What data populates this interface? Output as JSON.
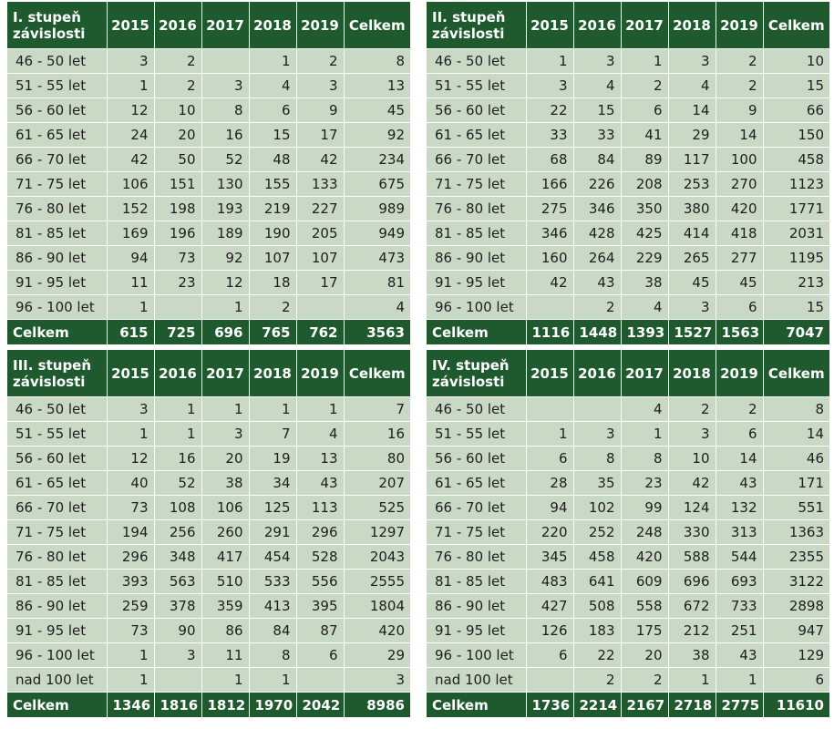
{
  "years": [
    "2015",
    "2016",
    "2017",
    "2018",
    "2019"
  ],
  "total_label": "Celkem",
  "tables": [
    {
      "heading": "I. stupeň závislosti",
      "rows": [
        {
          "age": "46 - 50 let",
          "values": [
            "3",
            "2",
            "",
            "1",
            "2"
          ],
          "total": "8"
        },
        {
          "age": "51 - 55 let",
          "values": [
            "1",
            "2",
            "3",
            "4",
            "3"
          ],
          "total": "13"
        },
        {
          "age": "56 - 60 let",
          "values": [
            "12",
            "10",
            "8",
            "6",
            "9"
          ],
          "total": "45"
        },
        {
          "age": "61 - 65 let",
          "values": [
            "24",
            "20",
            "16",
            "15",
            "17"
          ],
          "total": "92"
        },
        {
          "age": "66 - 70 let",
          "values": [
            "42",
            "50",
            "52",
            "48",
            "42"
          ],
          "total": "234"
        },
        {
          "age": "71 - 75 let",
          "values": [
            "106",
            "151",
            "130",
            "155",
            "133"
          ],
          "total": "675"
        },
        {
          "age": "76 - 80 let",
          "values": [
            "152",
            "198",
            "193",
            "219",
            "227"
          ],
          "total": "989"
        },
        {
          "age": "81 - 85 let",
          "values": [
            "169",
            "196",
            "189",
            "190",
            "205"
          ],
          "total": "949"
        },
        {
          "age": "86 - 90 let",
          "values": [
            "94",
            "73",
            "92",
            "107",
            "107"
          ],
          "total": "473"
        },
        {
          "age": "91 - 95 let",
          "values": [
            "11",
            "23",
            "12",
            "18",
            "17"
          ],
          "total": "81"
        },
        {
          "age": "96 - 100 let",
          "values": [
            "1",
            "",
            "1",
            "2",
            ""
          ],
          "total": "4"
        }
      ],
      "totals": {
        "values": [
          "615",
          "725",
          "696",
          "765",
          "762"
        ],
        "total": "3563"
      }
    },
    {
      "heading": "II. stupeň závislosti",
      "rows": [
        {
          "age": "46 - 50 let",
          "values": [
            "1",
            "3",
            "1",
            "3",
            "2"
          ],
          "total": "10"
        },
        {
          "age": "51 - 55 let",
          "values": [
            "3",
            "4",
            "2",
            "4",
            "2"
          ],
          "total": "15"
        },
        {
          "age": "56 - 60 let",
          "values": [
            "22",
            "15",
            "6",
            "14",
            "9"
          ],
          "total": "66"
        },
        {
          "age": "61 - 65 let",
          "values": [
            "33",
            "33",
            "41",
            "29",
            "14"
          ],
          "total": "150"
        },
        {
          "age": "66 - 70 let",
          "values": [
            "68",
            "84",
            "89",
            "117",
            "100"
          ],
          "total": "458"
        },
        {
          "age": "71 - 75 let",
          "values": [
            "166",
            "226",
            "208",
            "253",
            "270"
          ],
          "total": "1123"
        },
        {
          "age": "76 - 80 let",
          "values": [
            "275",
            "346",
            "350",
            "380",
            "420"
          ],
          "total": "1771"
        },
        {
          "age": "81 - 85 let",
          "values": [
            "346",
            "428",
            "425",
            "414",
            "418"
          ],
          "total": "2031"
        },
        {
          "age": "86 - 90 let",
          "values": [
            "160",
            "264",
            "229",
            "265",
            "277"
          ],
          "total": "1195"
        },
        {
          "age": "91 - 95 let",
          "values": [
            "42",
            "43",
            "38",
            "45",
            "45"
          ],
          "total": "213"
        },
        {
          "age": "96 - 100 let",
          "values": [
            "",
            "2",
            "4",
            "3",
            "6"
          ],
          "total": "15"
        }
      ],
      "totals": {
        "values": [
          "1116",
          "1448",
          "1393",
          "1527",
          "1563"
        ],
        "total": "7047"
      }
    },
    {
      "heading": "III. stupeň závislosti",
      "rows": [
        {
          "age": "46 - 50 let",
          "values": [
            "3",
            "1",
            "1",
            "1",
            "1"
          ],
          "total": "7"
        },
        {
          "age": "51 - 55 let",
          "values": [
            "1",
            "1",
            "3",
            "7",
            "4"
          ],
          "total": "16"
        },
        {
          "age": "56 - 60 let",
          "values": [
            "12",
            "16",
            "20",
            "19",
            "13"
          ],
          "total": "80"
        },
        {
          "age": "61 - 65 let",
          "values": [
            "40",
            "52",
            "38",
            "34",
            "43"
          ],
          "total": "207"
        },
        {
          "age": "66 - 70 let",
          "values": [
            "73",
            "108",
            "106",
            "125",
            "113"
          ],
          "total": "525"
        },
        {
          "age": "71 - 75 let",
          "values": [
            "194",
            "256",
            "260",
            "291",
            "296"
          ],
          "total": "1297"
        },
        {
          "age": "76 - 80 let",
          "values": [
            "296",
            "348",
            "417",
            "454",
            "528"
          ],
          "total": "2043"
        },
        {
          "age": "81 - 85 let",
          "values": [
            "393",
            "563",
            "510",
            "533",
            "556"
          ],
          "total": "2555"
        },
        {
          "age": "86 - 90 let",
          "values": [
            "259",
            "378",
            "359",
            "413",
            "395"
          ],
          "total": "1804"
        },
        {
          "age": "91 - 95 let",
          "values": [
            "73",
            "90",
            "86",
            "84",
            "87"
          ],
          "total": "420"
        },
        {
          "age": "96 - 100 let",
          "values": [
            "1",
            "3",
            "11",
            "8",
            "6"
          ],
          "total": "29"
        },
        {
          "age": "nad 100 let",
          "values": [
            "1",
            "",
            "1",
            "1",
            ""
          ],
          "total": "3"
        }
      ],
      "totals": {
        "values": [
          "1346",
          "1816",
          "1812",
          "1970",
          "2042"
        ],
        "total": "8986"
      }
    },
    {
      "heading": "IV. stupeň závislosti",
      "rows": [
        {
          "age": "46 - 50 let",
          "values": [
            "",
            "",
            "4",
            "2",
            "2"
          ],
          "total": "8"
        },
        {
          "age": "51 - 55 let",
          "values": [
            "1",
            "3",
            "1",
            "3",
            "6"
          ],
          "total": "14"
        },
        {
          "age": "56 - 60 let",
          "values": [
            "6",
            "8",
            "8",
            "10",
            "14"
          ],
          "total": "46"
        },
        {
          "age": "61 - 65 let",
          "values": [
            "28",
            "35",
            "23",
            "42",
            "43"
          ],
          "total": "171"
        },
        {
          "age": "66 - 70 let",
          "values": [
            "94",
            "102",
            "99",
            "124",
            "132"
          ],
          "total": "551"
        },
        {
          "age": "71 - 75 let",
          "values": [
            "220",
            "252",
            "248",
            "330",
            "313"
          ],
          "total": "1363"
        },
        {
          "age": "76 - 80 let",
          "values": [
            "345",
            "458",
            "420",
            "588",
            "544"
          ],
          "total": "2355"
        },
        {
          "age": "81 - 85 let",
          "values": [
            "483",
            "641",
            "609",
            "696",
            "693"
          ],
          "total": "3122"
        },
        {
          "age": "86 - 90 let",
          "values": [
            "427",
            "508",
            "558",
            "672",
            "733"
          ],
          "total": "2898"
        },
        {
          "age": "91 - 95 let",
          "values": [
            "126",
            "183",
            "175",
            "212",
            "251"
          ],
          "total": "947"
        },
        {
          "age": "96 - 100 let",
          "values": [
            "6",
            "22",
            "20",
            "38",
            "43"
          ],
          "total": "129"
        },
        {
          "age": "nad 100 let",
          "values": [
            "",
            "2",
            "2",
            "1",
            "1"
          ],
          "total": "6"
        }
      ],
      "totals": {
        "values": [
          "1736",
          "2214",
          "2167",
          "2718",
          "2775"
        ],
        "total": "11610"
      }
    }
  ],
  "colors": {
    "header_green": "#1f5a2f",
    "row_green": "#c9d9c5",
    "divider": "#ffffff"
  }
}
